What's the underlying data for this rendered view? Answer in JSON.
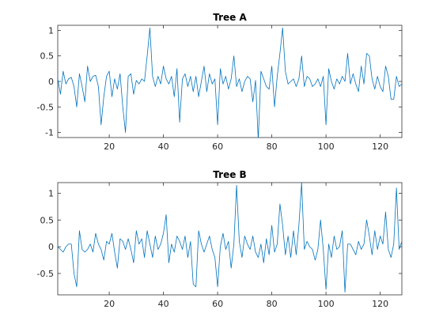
{
  "chart_data": [
    {
      "type": "line",
      "title": "Tree A",
      "xlabel": "",
      "ylabel": "",
      "xlim": [
        1,
        128
      ],
      "ylim": [
        -1.1,
        1.1
      ],
      "xticks": [
        20,
        40,
        60,
        80,
        100,
        120
      ],
      "yticks": [
        -1,
        -0.5,
        0,
        0.5,
        1
      ],
      "ytick_labels": [
        "-1",
        "-0.5",
        "0",
        "0.5",
        "1"
      ],
      "grid": false,
      "color": "#0072BD",
      "series": [
        {
          "x": [
            1,
            2,
            3,
            4,
            5,
            6,
            7,
            8,
            9,
            10,
            11,
            12,
            13,
            14,
            15,
            16,
            17,
            18,
            19,
            20,
            21,
            22,
            23,
            24,
            25,
            26,
            27,
            28,
            29,
            30,
            31,
            32,
            33,
            34,
            35,
            36,
            37,
            38,
            39,
            40,
            41,
            42,
            43,
            44,
            45,
            46,
            47,
            48,
            49,
            50,
            51,
            52,
            53,
            54,
            55,
            56,
            57,
            58,
            59,
            60,
            61,
            62,
            63,
            64,
            65,
            66,
            67,
            68,
            69,
            70,
            71,
            72,
            73,
            74,
            75,
            76,
            77,
            78,
            79,
            80,
            81,
            82,
            83,
            84,
            85,
            86,
            87,
            88,
            89,
            90,
            91,
            92,
            93,
            94,
            95,
            96,
            97,
            98,
            99,
            100,
            101,
            102,
            103,
            104,
            105,
            106,
            107,
            108,
            109,
            110,
            111,
            112,
            113,
            114,
            115,
            116,
            117,
            118,
            119,
            120,
            121,
            122,
            123,
            124,
            125,
            126,
            127,
            128
          ],
          "values": [
            0.05,
            -0.25,
            0.2,
            -0.05,
            0.05,
            0.08,
            -0.1,
            -0.5,
            0.15,
            -0.1,
            -0.4,
            0.3,
            0.0,
            0.1,
            0.12,
            -0.1,
            -0.85,
            -0.3,
            0.1,
            0.2,
            -0.3,
            0.05,
            -0.15,
            0.15,
            -0.5,
            -1.0,
            0.1,
            0.15,
            -0.25,
            0.02,
            -0.05,
            0.05,
            0.0,
            0.5,
            1.05,
            0.1,
            -0.1,
            0.1,
            -0.05,
            0.3,
            0.05,
            -0.05,
            0.1,
            -0.3,
            0.25,
            -0.8,
            0.05,
            0.15,
            -0.1,
            0.1,
            -0.2,
            0.1,
            -0.3,
            0.0,
            0.3,
            -0.2,
            0.15,
            -0.05,
            0.05,
            -0.85,
            0.25,
            -0.05,
            0.1,
            -0.15,
            0.05,
            0.5,
            -0.1,
            0.05,
            -0.2,
            0.0,
            0.1,
            0.05,
            -0.4,
            0.02,
            -1.15,
            0.2,
            0.05,
            -0.1,
            -0.15,
            0.3,
            -0.5,
            0.1,
            0.55,
            1.05,
            0.2,
            -0.05,
            0.0,
            0.05,
            -0.1,
            0.05,
            0.5,
            -0.1,
            0.1,
            0.05,
            -0.1,
            -0.05,
            0.05,
            -0.1,
            0.1,
            -0.85,
            0.25,
            0.0,
            -0.15,
            0.05,
            -0.05,
            0.1,
            0.0,
            0.55,
            -0.05,
            0.15,
            -0.05,
            -0.2,
            0.3,
            -0.05,
            0.55,
            0.5,
            0.05,
            -0.15,
            0.1,
            -0.1,
            -0.2,
            0.3,
            0.1,
            -0.35,
            -0.35,
            0.1,
            -0.1,
            -0.05
          ]
        }
      ]
    },
    {
      "type": "line",
      "title": "Tree B",
      "xlabel": "",
      "ylabel": "",
      "xlim": [
        1,
        128
      ],
      "ylim": [
        -0.9,
        1.2
      ],
      "xticks": [
        20,
        40,
        60,
        80,
        100,
        120
      ],
      "yticks": [
        -0.5,
        0,
        0.5,
        1
      ],
      "ytick_labels": [
        "-0.5",
        "0",
        "0.5",
        "1"
      ],
      "grid": false,
      "color": "#0072BD",
      "series": [
        {
          "x": [
            1,
            2,
            3,
            4,
            5,
            6,
            7,
            8,
            9,
            10,
            11,
            12,
            13,
            14,
            15,
            16,
            17,
            18,
            19,
            20,
            21,
            22,
            23,
            24,
            25,
            26,
            27,
            28,
            29,
            30,
            31,
            32,
            33,
            34,
            35,
            36,
            37,
            38,
            39,
            40,
            41,
            42,
            43,
            44,
            45,
            46,
            47,
            48,
            49,
            50,
            51,
            52,
            53,
            54,
            55,
            56,
            57,
            58,
            59,
            60,
            61,
            62,
            63,
            64,
            65,
            66,
            67,
            68,
            69,
            70,
            71,
            72,
            73,
            74,
            75,
            76,
            77,
            78,
            79,
            80,
            81,
            82,
            83,
            84,
            85,
            86,
            87,
            88,
            89,
            90,
            91,
            92,
            93,
            94,
            95,
            96,
            97,
            98,
            99,
            100,
            101,
            102,
            103,
            104,
            105,
            106,
            107,
            108,
            109,
            110,
            111,
            112,
            113,
            114,
            115,
            116,
            117,
            118,
            119,
            120,
            121,
            122,
            123,
            124,
            125,
            126,
            127,
            128
          ],
          "values": [
            0.0,
            -0.05,
            -0.1,
            0.0,
            0.05,
            0.05,
            -0.5,
            -0.75,
            0.3,
            -0.05,
            -0.1,
            -0.05,
            0.05,
            -0.1,
            0.25,
            0.05,
            -0.05,
            -0.25,
            0.1,
            0.05,
            0.25,
            -0.1,
            -0.4,
            0.15,
            0.1,
            -0.05,
            0.15,
            -0.05,
            -0.3,
            0.3,
            0.05,
            0.15,
            -0.2,
            0.3,
            0.05,
            -0.2,
            0.2,
            -0.05,
            0.05,
            0.25,
            0.6,
            -0.3,
            0.05,
            -0.1,
            0.2,
            0.1,
            -0.05,
            0.2,
            -0.2,
            0.1,
            -0.7,
            -0.75,
            0.3,
            0.05,
            -0.1,
            0.05,
            0.2,
            -0.05,
            -0.2,
            -0.75,
            0.0,
            0.25,
            -0.05,
            0.1,
            -0.4,
            0.05,
            1.15,
            0.1,
            -0.2,
            0.2,
            0.05,
            -0.05,
            0.2,
            -0.1,
            -0.2,
            0.05,
            -0.3,
            0.15,
            -0.15,
            0.4,
            -0.1,
            0.05,
            0.8,
            0.4,
            -0.15,
            0.2,
            -0.2,
            0.3,
            -0.15,
            0.4,
            1.2,
            -0.05,
            0.1,
            0.0,
            -0.05,
            -0.25,
            -0.05,
            0.5,
            -0.05,
            -0.8,
            0.05,
            -0.2,
            0.2,
            -0.05,
            0.0,
            0.3,
            -0.85,
            0.05,
            0.05,
            -0.05,
            -0.15,
            0.1,
            -0.05,
            0.05,
            0.5,
            0.2,
            -0.15,
            0.3,
            -0.05,
            0.2,
            0.05,
            0.65,
            -0.05,
            -0.2,
            0.05,
            1.1,
            -0.05,
            0.1
          ]
        }
      ]
    }
  ]
}
